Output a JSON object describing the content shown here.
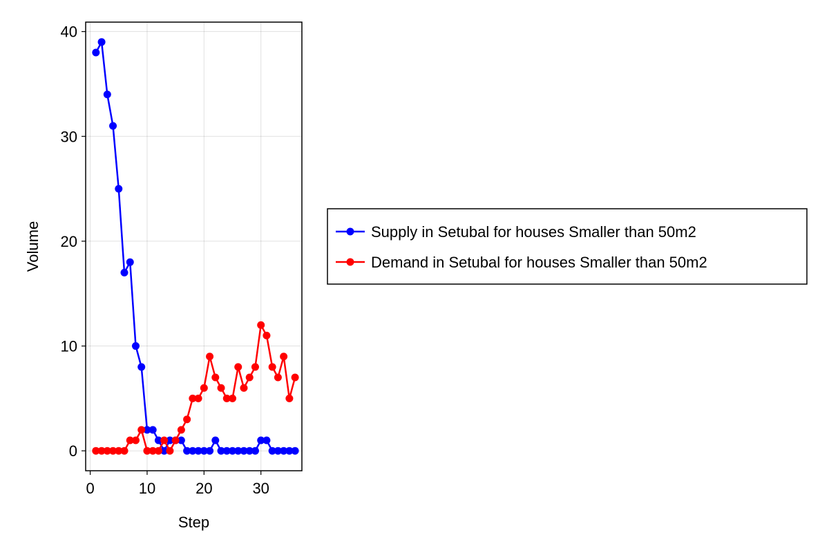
{
  "chart_data": {
    "type": "line",
    "title": "",
    "xlabel": "Step",
    "ylabel": "Volume",
    "xlim": [
      -0.8,
      37.2
    ],
    "ylim": [
      -1.9,
      40.9
    ],
    "xticks": [
      0,
      10,
      20,
      30
    ],
    "yticks": [
      0,
      10,
      20,
      30,
      40
    ],
    "grid": true,
    "legend_position": "right",
    "x": [
      1,
      2,
      3,
      4,
      5,
      6,
      7,
      8,
      9,
      10,
      11,
      12,
      13,
      14,
      15,
      16,
      17,
      18,
      19,
      20,
      21,
      22,
      23,
      24,
      25,
      26,
      27,
      28,
      29,
      30,
      31,
      32,
      33,
      34,
      35,
      36
    ],
    "series": [
      {
        "name": "Supply in Setubal for houses Smaller than 50m2",
        "color": "#0000ff",
        "values": [
          38,
          39,
          34,
          31,
          25,
          17,
          18,
          10,
          8,
          2,
          2,
          1,
          0,
          1,
          1,
          1,
          0,
          0,
          0,
          0,
          0,
          1,
          0,
          0,
          0,
          0,
          0,
          0,
          0,
          1,
          1,
          0,
          0,
          0,
          0,
          0
        ]
      },
      {
        "name": "Demand in Setubal for houses Smaller than 50m2",
        "color": "#ff0000",
        "values": [
          0,
          0,
          0,
          0,
          0,
          0,
          1,
          1,
          2,
          0,
          0,
          0,
          1,
          0,
          1,
          2,
          3,
          5,
          5,
          6,
          9,
          7,
          6,
          5,
          5,
          8,
          6,
          7,
          8,
          12,
          11,
          8,
          7,
          9,
          5,
          7
        ]
      }
    ]
  }
}
